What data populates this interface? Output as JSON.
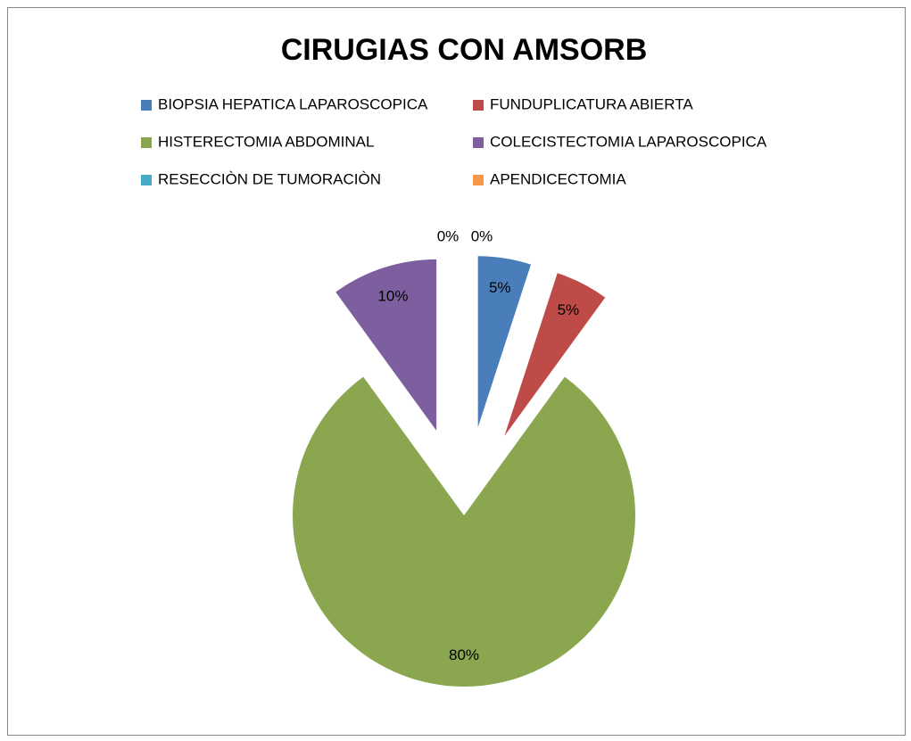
{
  "chart_data": {
    "type": "pie",
    "title": "CIRUGIAS CON AMSORB",
    "categories": [
      "BIOPSIA HEPATICA LAPAROSCOPICA",
      "FUNDUPLICATURA ABIERTA",
      "HISTERECTOMIA ABDOMINAL",
      "COLECISTECTOMIA LAPAROSCOPICA",
      "RESECCIÒN DE TUMORACIÒN",
      "APENDICECTOMIA"
    ],
    "values": [
      5,
      5,
      80,
      10,
      0,
      0
    ],
    "value_labels": [
      "5%",
      "5%",
      "80%",
      "10%",
      "0%",
      "0%"
    ],
    "colors": [
      "#4a7ebb",
      "#be4b48",
      "#8aa750",
      "#7d5f9f",
      "#46aac5",
      "#f79646"
    ],
    "legend": "top"
  }
}
